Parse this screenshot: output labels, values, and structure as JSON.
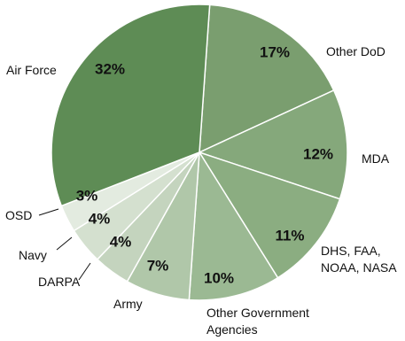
{
  "chart_data": {
    "type": "pie",
    "title": "",
    "slices": [
      {
        "label": "Other DoD",
        "value": 17,
        "display": "17%",
        "color": "#7a9e6f"
      },
      {
        "label": "MDA",
        "value": 12,
        "display": "12%",
        "color": "#85a87b"
      },
      {
        "label": "DHS, FAA,\nNOAA, NASA",
        "value": 11,
        "display": "11%",
        "color": "#8bad81"
      },
      {
        "label": "Other Government\nAgencies",
        "value": 10,
        "display": "10%",
        "color": "#9bb993"
      },
      {
        "label": "Army",
        "value": 7,
        "display": "7%",
        "color": "#b0c7a9"
      },
      {
        "label": "DARPA",
        "value": 4,
        "display": "4%",
        "color": "#c4d4be"
      },
      {
        "label": "Navy",
        "value": 4,
        "display": "4%",
        "color": "#d4e0cf"
      },
      {
        "label": "OSD",
        "value": 3,
        "display": "3%",
        "color": "#e3ebe0"
      },
      {
        "label": "Air Force",
        "value": 32,
        "display": "32%",
        "color": "#5e8c55"
      }
    ]
  }
}
